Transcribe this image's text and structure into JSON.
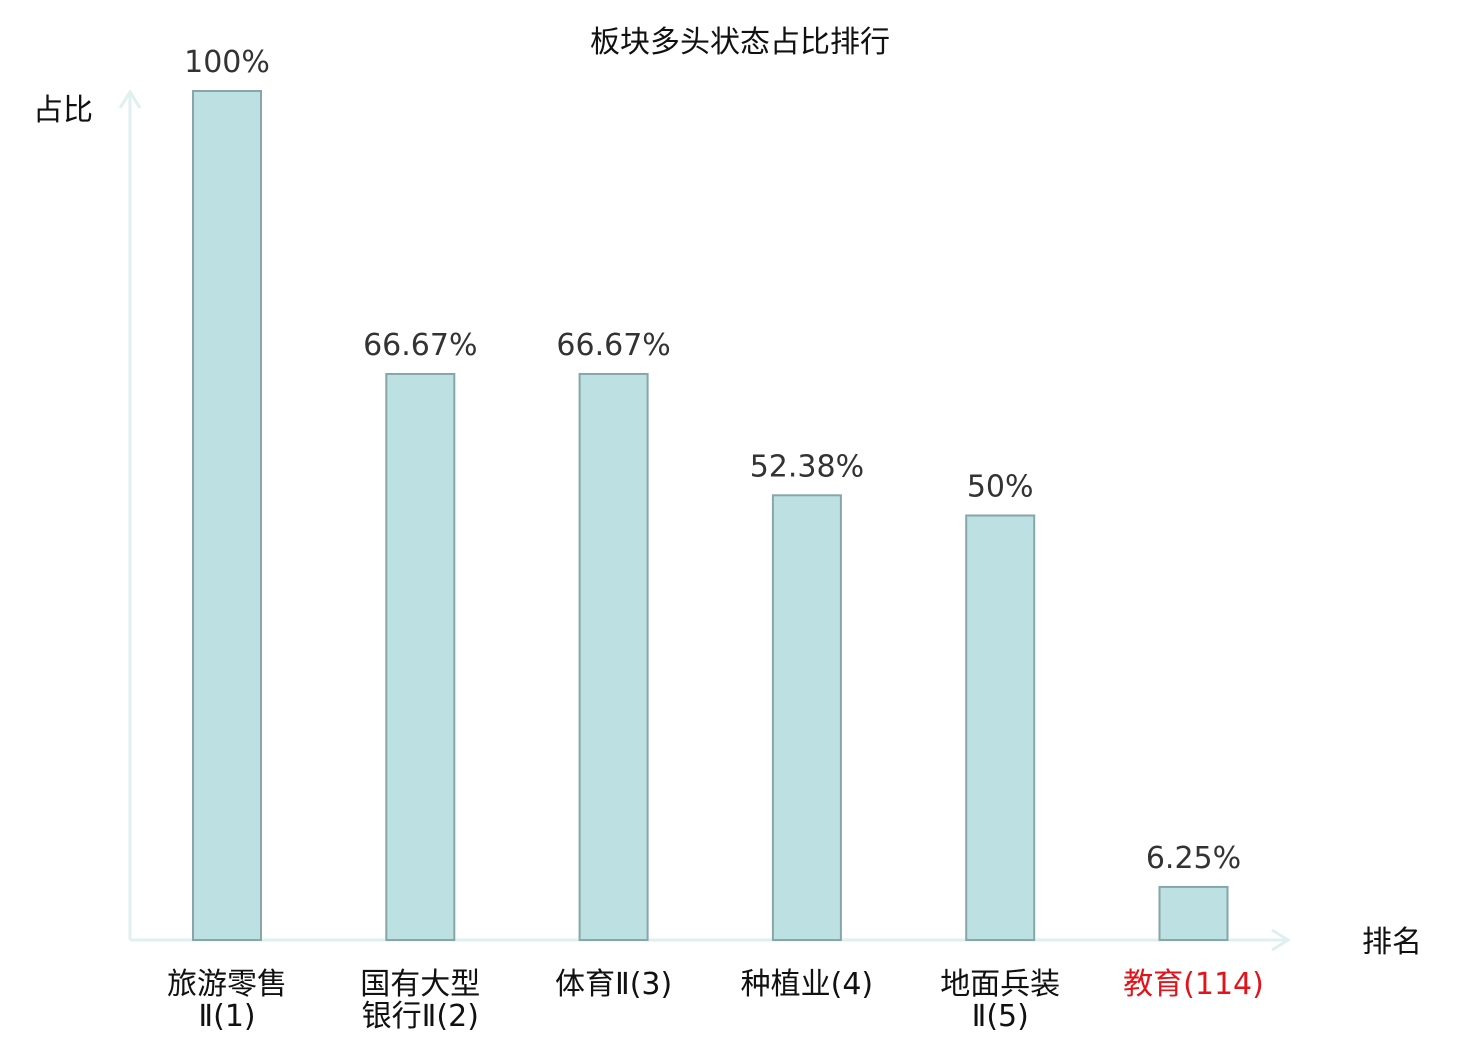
{
  "chart_data": {
    "type": "bar",
    "title": "板块多头状态占比排行",
    "ylabel": "占比",
    "xlabel": "排名",
    "ylim": [
      0,
      100
    ],
    "grid": false,
    "legend": "none",
    "categories": [
      {
        "line1": "旅游零售",
        "line2": "Ⅱ(1)"
      },
      {
        "line1": "国有大型",
        "line2": "银行Ⅱ(2)"
      },
      {
        "line1": "体育Ⅱ(3)",
        "line2": ""
      },
      {
        "line1": "种植业(4)",
        "line2": ""
      },
      {
        "line1": "地面兵装",
        "line2": "Ⅱ(5)"
      },
      {
        "line1": "教育(114)",
        "line2": ""
      }
    ],
    "values": [
      100,
      66.67,
      66.67,
      52.38,
      50,
      6.25
    ],
    "value_labels": [
      "100%",
      "66.67%",
      "66.67%",
      "52.38%",
      "50%",
      "6.25%"
    ],
    "highlight_index": 5,
    "colors": {
      "bar_fill": "#bde0e3",
      "bar_stroke": "#86a6aa",
      "axis": "#dff0ee",
      "text": "#111111",
      "value_text": "#333333",
      "highlight": "#e0151b"
    }
  }
}
